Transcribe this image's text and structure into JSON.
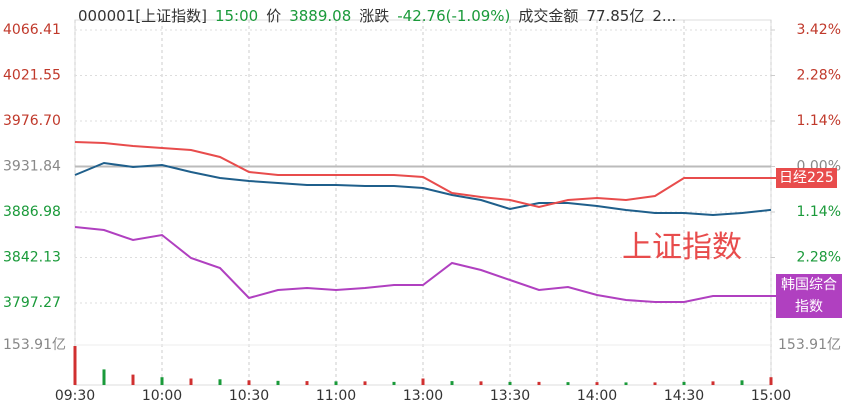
{
  "chart_data": {
    "type": "line",
    "header": [
      "000001[上证指数]",
      "15:00",
      "价",
      "3889.08",
      "涨跌",
      "-42.76(-1.09%)",
      "成交金额",
      "77.85亿",
      "2..."
    ],
    "header_colors": [
      "#333333",
      "#1a9a3a",
      "#333333",
      "#1a9a3a",
      "#333333",
      "#1a9a3a",
      "#333333",
      "#333333",
      "#333333"
    ],
    "annotation": "上证指数",
    "x": [
      0,
      10,
      20,
      30,
      40,
      50,
      60,
      70,
      80,
      90,
      100,
      110,
      120,
      130,
      140,
      150,
      160,
      170,
      180,
      190,
      200,
      210,
      220,
      230,
      240
    ],
    "xlim": [
      0,
      240
    ],
    "xticks": [
      {
        "value": 0,
        "label": "09:30"
      },
      {
        "value": 30,
        "label": "10:00"
      },
      {
        "value": 60,
        "label": "10:30"
      },
      {
        "value": 90,
        "label": "11:00"
      },
      {
        "value": 120,
        "label": "13:00"
      },
      {
        "value": 150,
        "label": "13:30"
      },
      {
        "value": 180,
        "label": "14:00"
      },
      {
        "value": 210,
        "label": "14:30"
      },
      {
        "value": 240,
        "label": "15:00"
      }
    ],
    "ylim": [
      3797.27,
      4066.41
    ],
    "yticks": [
      4066.41,
      4021.55,
      {
        "value": 3976.7,
        "label": "3976.70"
      },
      3931.84,
      3886.98,
      3842.13,
      3797.27
    ],
    "y2lim": [
      -3.42,
      3.42
    ],
    "y2ticks": [
      {
        "value": 3.42,
        "label": "3.42%"
      },
      {
        "value": 2.28,
        "label": "2.28%"
      },
      {
        "value": 1.14,
        "label": "1.14%"
      },
      {
        "value": 0,
        "label": "0.00%"
      },
      {
        "value": -1.14,
        "label": "1.14%"
      },
      {
        "value": -2.28,
        "label": "2.28%"
      }
    ],
    "series": [
      {
        "name": "上证指数",
        "color": "#1f5f8b",
        "values": [
          3923.45,
          3935.29,
          3931.34,
          3933.31,
          3926.41,
          3920.5,
          3917.54,
          3915.57,
          3913.6,
          3913.6,
          3912.61,
          3912.61,
          3910.64,
          3903.74,
          3898.81,
          3889.93,
          3895.85,
          3895.85,
          3892.89,
          3888.95,
          3885.99,
          3885.99,
          3884.02,
          3885.99,
          3889.08
        ]
      },
      {
        "name": "日经225",
        "color": "#e84c4c",
        "values": [
          3955.99,
          3955.0,
          3952.05,
          3950.07,
          3948.1,
          3941.2,
          3926.41,
          3923.45,
          3923.45,
          3923.45,
          3923.45,
          3923.45,
          3921.48,
          3905.71,
          3901.76,
          3898.81,
          3891.9,
          3898.81,
          3900.78,
          3898.81,
          3902.75,
          3920.5,
          3920.5,
          3920.5,
          3920.5
        ]
      },
      {
        "name": "韩国综合指数",
        "color": "#b040c0",
        "values": [
          3872.19,
          3869.23,
          3859.37,
          3864.3,
          3841.62,
          3831.77,
          3802.19,
          3810.08,
          3812.05,
          3810.08,
          3812.05,
          3815.01,
          3815.01,
          3836.7,
          3829.79,
          3819.94,
          3810.08,
          3813.03,
          3805.15,
          3800.22,
          3798.25,
          3798.25,
          3804.16,
          3804.16,
          3804.16
        ]
      }
    ],
    "volume": {
      "ylim": [
        0,
        153.91
      ],
      "yticks": [
        {
          "value": 153.91,
          "label": "153.91亿"
        }
      ],
      "color": "#d03030",
      "values": [
        150,
        60,
        40,
        30,
        25,
        22,
        18,
        16,
        15,
        14,
        14,
        12,
        25,
        15,
        14,
        12,
        12,
        11,
        11,
        10,
        10,
        12,
        14,
        18,
        30
      ]
    }
  }
}
